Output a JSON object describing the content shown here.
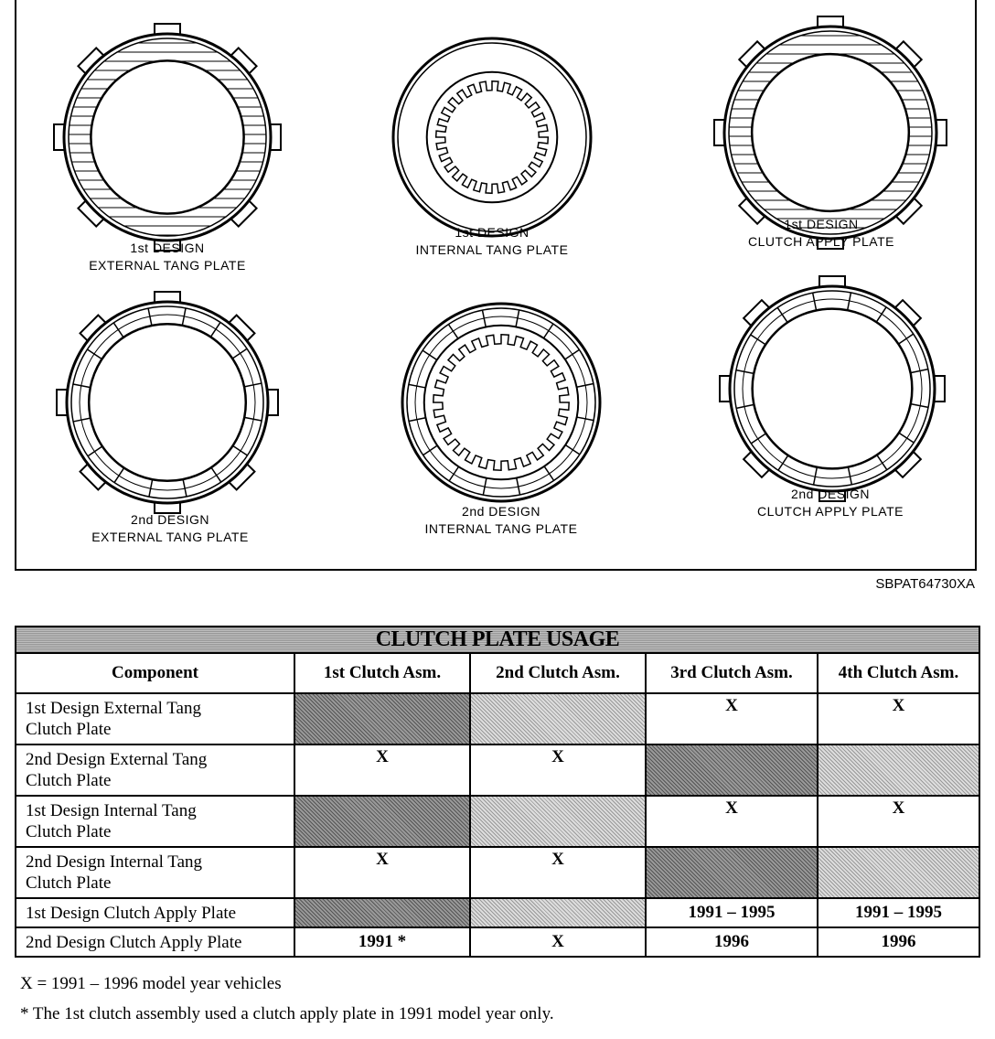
{
  "figure": {
    "id_label": "SBPAT64730XA",
    "plates": [
      {
        "line1": "1st DESIGN",
        "line2": "EXTERNAL TANG PLATE",
        "style": "ext-hatch"
      },
      {
        "line1": "1st DESIGN",
        "line2": "INTERNAL TANG PLATE",
        "style": "int-plain"
      },
      {
        "line1": "1st DESIGN",
        "line2": "CLUTCH APPLY PLATE",
        "style": "ext-hatch"
      },
      {
        "line1": "2nd DESIGN",
        "line2": "EXTERNAL TANG PLATE",
        "style": "ext-segment"
      },
      {
        "line1": "2nd DESIGN",
        "line2": "INTERNAL TANG PLATE",
        "style": "int-segment"
      },
      {
        "line1": "2nd DESIGN",
        "line2": "CLUTCH APPLY PLATE",
        "style": "ext-segment"
      }
    ]
  },
  "table": {
    "title": "CLUTCH PLATE USAGE",
    "headers": [
      "Component",
      "1st Clutch Asm.",
      "2nd Clutch Asm.",
      "3rd Clutch Asm.",
      "4th Clutch Asm."
    ],
    "rows": [
      {
        "component_line1": "1st Design External Tang",
        "component_line2": "Clutch Plate",
        "cells": [
          "",
          "",
          "X",
          "X"
        ],
        "shade": [
          "dark",
          "light",
          "",
          ""
        ]
      },
      {
        "component_line1": "2nd Design External Tang",
        "component_line2": "Clutch Plate",
        "cells": [
          "X",
          "X",
          "",
          ""
        ],
        "shade": [
          "",
          "",
          "dark",
          "light"
        ]
      },
      {
        "component_line1": "1st Design Internal Tang",
        "component_line2": "Clutch Plate",
        "cells": [
          "",
          "",
          "X",
          "X"
        ],
        "shade": [
          "dark",
          "light",
          "",
          ""
        ]
      },
      {
        "component_line1": "2nd Design Internal Tang",
        "component_line2": "Clutch Plate",
        "cells": [
          "X",
          "X",
          "",
          ""
        ],
        "shade": [
          "",
          "",
          "dark",
          "light"
        ]
      },
      {
        "component_line1": "1st Design Clutch Apply Plate",
        "component_line2": "",
        "cells": [
          "",
          "",
          "1991 – 1995",
          "1991 – 1995"
        ],
        "shade": [
          "dark",
          "light",
          "",
          ""
        ]
      },
      {
        "component_line1": "2nd Design Clutch Apply Plate",
        "component_line2": "",
        "cells": [
          "1991 *",
          "X",
          "1996",
          "1996"
        ],
        "shade": [
          "",
          "",
          "",
          ""
        ]
      }
    ]
  },
  "legend": {
    "x_note": "X = 1991 – 1996 model year vehicles",
    "star_note": "* The 1st clutch assembly used a clutch apply plate in 1991 model year only."
  }
}
